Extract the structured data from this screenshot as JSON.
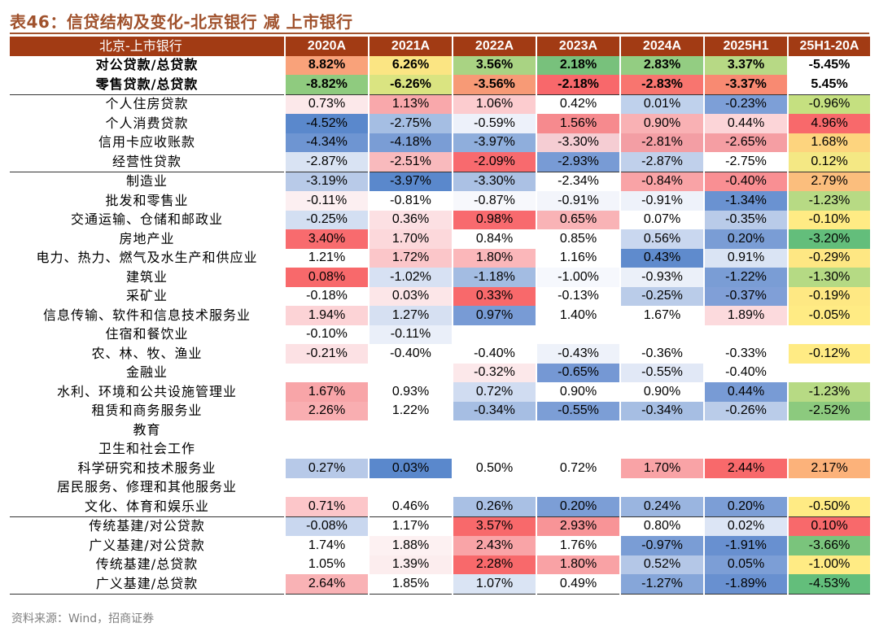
{
  "title": "表46：信贷结构及变化-北京银行 减 上市银行",
  "source": "资料来源：Wind，招商证券",
  "header": [
    "北京-上市银行",
    "2020A",
    "2021A",
    "2022A",
    "2023A",
    "2024A",
    "2025H1",
    "25H1-20A"
  ],
  "rows": [
    {
      "label": "对公贷款/总贷款",
      "bold": true,
      "values": [
        "8.82%",
        "6.26%",
        "3.56%",
        "2.18%",
        "2.83%",
        "3.37%",
        "-5.45%"
      ],
      "colors": [
        "#F9A27A",
        "#FBE583",
        "#A9D383",
        "#78C17C",
        "#93CD82",
        "#B7D985",
        "#FFFFFF"
      ]
    },
    {
      "label": "零售贷款/总贷款",
      "bold": true,
      "values": [
        "-8.82%",
        "-6.26%",
        "-3.56%",
        "-2.18%",
        "-2.83%",
        "-3.37%",
        "5.45%"
      ],
      "colors": [
        "#8FCB7F",
        "#DAE481",
        "#F79A76",
        "#F8686B",
        "#F8756F",
        "#F88A72",
        "#FFFFFF"
      ]
    },
    {
      "label": "个人住房贷款",
      "values": [
        "0.73%",
        "1.13%",
        "1.06%",
        "0.42%",
        "0.01%",
        "-0.23%",
        "-0.96%"
      ],
      "colors": [
        "#FCE8EA",
        "#F9A8AB",
        "#FCCCCF",
        "#FFFFFF",
        "#BFD1EC",
        "#7D9FD7",
        "#C5E080"
      ],
      "sep": true
    },
    {
      "label": "个人消费贷款",
      "values": [
        "-4.52%",
        "-2.75%",
        "-0.59%",
        "1.56%",
        "0.90%",
        "0.44%",
        "4.96%"
      ],
      "colors": [
        "#5A88CC",
        "#A5BEE3",
        "#EDF1FA",
        "#F68A8E",
        "#F9B1B4",
        "#FCD5D8",
        "#F8696B"
      ]
    },
    {
      "label": "信用卡应收账款",
      "values": [
        "-4.34%",
        "-4.18%",
        "-3.97%",
        "-3.30%",
        "-2.81%",
        "-2.65%",
        "1.68%"
      ],
      "colors": [
        "#6E95D2",
        "#7A9DD5",
        "#8FAEDC",
        "#F5CDD3",
        "#F39EA4",
        "#F59EA3",
        "#FDD47E"
      ]
    },
    {
      "label": "经营性贷款",
      "values": [
        "-2.87%",
        "-2.51%",
        "-2.09%",
        "-2.93%",
        "-2.87%",
        "-2.75%",
        "0.12%"
      ],
      "colors": [
        "#D9E3F3",
        "#F9BABD",
        "#F86A6E",
        "#789BD5",
        "#C0D0EB",
        "#FFFFFF",
        "#F4E884"
      ]
    },
    {
      "label": "制造业",
      "values": [
        "-3.19%",
        "-3.97%",
        "-3.30%",
        "-2.34%",
        "-0.84%",
        "-0.40%",
        "2.79%"
      ],
      "colors": [
        "#B8CAE8",
        "#5A88CC",
        "#ABC1E4",
        "#FFFFFF",
        "#F9A3A6",
        "#F98F93",
        "#FBBE7D"
      ],
      "sep": true
    },
    {
      "label": "批发和零售业",
      "values": [
        "-0.11%",
        "-0.81%",
        "-0.87%",
        "-0.91%",
        "-0.91%",
        "-1.34%",
        "-1.23%"
      ],
      "colors": [
        "#FCEFF1",
        "#FFFFFF",
        "#F7F8FC",
        "#F3F5FB",
        "#EEF2FA",
        "#6A92D1",
        "#B7DA84"
      ]
    },
    {
      "label": "交通运输、仓储和邮政业",
      "values": [
        "-0.25%",
        "0.36%",
        "0.98%",
        "0.65%",
        "0.07%",
        "-0.35%",
        "-0.10%"
      ],
      "colors": [
        "#D3DFF2",
        "#FCE0E3",
        "#F86A6E",
        "#F9B3B6",
        "#FFFFFF",
        "#B9CBE9",
        "#FFEB84"
      ]
    },
    {
      "label": "房地产业",
      "values": [
        "3.40%",
        "1.70%",
        "0.84%",
        "0.85%",
        "0.56%",
        "0.20%",
        "-3.20%"
      ],
      "colors": [
        "#F86B6E",
        "#FCD8DB",
        "#FFFFFF",
        "#FFFFFF",
        "#C9D7EF",
        "#7A9DD5",
        "#63BE7B"
      ]
    },
    {
      "label": "电力、热力、燃气及水生产和供应业",
      "values": [
        "1.21%",
        "1.72%",
        "1.80%",
        "1.16%",
        "0.43%",
        "0.91%",
        "-0.29%"
      ],
      "colors": [
        "#FFFFFF",
        "#FBC6C9",
        "#FBB7BA",
        "#FFFFFF",
        "#5F8BCD",
        "#DAE4F4",
        "#FEE783"
      ]
    },
    {
      "label": "建筑业",
      "values": [
        "0.08%",
        "-1.02%",
        "-1.18%",
        "-1.00%",
        "-0.93%",
        "-1.22%",
        "-1.30%"
      ],
      "colors": [
        "#F8696B",
        "#D7E1F3",
        "#A3BCE2",
        "#F6F8FD",
        "#EBF0F9",
        "#7A9DD5",
        "#B5DA84"
      ]
    },
    {
      "label": "采矿业",
      "values": [
        "-0.18%",
        "0.03%",
        "0.33%",
        "-0.13%",
        "-0.25%",
        "-0.37%",
        "-0.19%"
      ],
      "colors": [
        "#FFFFFF",
        "#FCE6E8",
        "#F8696B",
        "#FFFFFF",
        "#BACCE9",
        "#809FD7",
        "#FEE883"
      ]
    },
    {
      "label": "信息传输、软件和信息技术服务业",
      "values": [
        "1.94%",
        "1.27%",
        "0.97%",
        "1.40%",
        "1.67%",
        "1.89%",
        "-0.05%"
      ],
      "colors": [
        "#FCD3D6",
        "#D6E0F2",
        "#789BD5",
        "#FFFFFF",
        "#FFFFFF",
        "#FCDADD",
        "#FFEB84"
      ]
    },
    {
      "label": "住宿和餐饮业",
      "values": [
        "-0.10%",
        "-0.11%",
        "",
        "",
        "",
        "",
        ""
      ],
      "colors": [
        "#FFFFFF",
        "#EAEFF9",
        "#FFFFFF",
        "#FFFFFF",
        "#FFFFFF",
        "#FFFFFF",
        "#FFFFFF"
      ]
    },
    {
      "label": "农、林、牧、渔业",
      "values": [
        "-0.21%",
        "-0.40%",
        "-0.40%",
        "-0.43%",
        "-0.36%",
        "-0.33%",
        "-0.12%"
      ],
      "colors": [
        "#FCE1E4",
        "#FFFFFF",
        "#FFFFFF",
        "#EEF2FA",
        "#FFFFFF",
        "#FFFFFF",
        "#FFEB84"
      ]
    },
    {
      "label": "金融业",
      "values": [
        "",
        "",
        "-0.32%",
        "-0.65%",
        "-0.55%",
        "-0.40%",
        ""
      ],
      "colors": [
        "#FFFFFF",
        "#FFFFFF",
        "#FCE8EA",
        "#7598D4",
        "#E1E8F6",
        "#FFFFFF",
        "#FFFFFF"
      ]
    },
    {
      "label": "水利、环境和公共设施管理业",
      "values": [
        "1.67%",
        "0.93%",
        "0.72%",
        "0.90%",
        "0.90%",
        "0.44%",
        "-1.23%"
      ],
      "colors": [
        "#F8A5A8",
        "#FFFFFF",
        "#D0DCF1",
        "#FFFFFF",
        "#FFFFFF",
        "#789BD5",
        "#B7DA84"
      ]
    },
    {
      "label": "租赁和商务服务业",
      "values": [
        "2.26%",
        "1.22%",
        "-0.34%",
        "-0.55%",
        "-0.34%",
        "-0.26%",
        "-2.52%"
      ],
      "colors": [
        "#F9AEB1",
        "#FFFFFF",
        "#A6BEE3",
        "#7C9ED6",
        "#A6BEE3",
        "#BACCE9",
        "#8CCA7E"
      ]
    },
    {
      "label": "教育",
      "values": [
        "",
        "",
        "",
        "",
        "",
        "",
        ""
      ],
      "colors": [
        "#FFFFFF",
        "#FFFFFF",
        "#FFFFFF",
        "#FFFFFF",
        "#FFFFFF",
        "#FFFFFF",
        "#FFFFFF"
      ]
    },
    {
      "label": "卫生和社会工作",
      "values": [
        "",
        "",
        "",
        "",
        "",
        "",
        ""
      ],
      "colors": [
        "#FFFFFF",
        "#FFFFFF",
        "#FFFFFF",
        "#FFFFFF",
        "#FFFFFF",
        "#FFFFFF",
        "#FFFFFF"
      ]
    },
    {
      "label": "科学研究和技术服务业",
      "values": [
        "0.27%",
        "0.03%",
        "0.50%",
        "0.72%",
        "1.70%",
        "2.44%",
        "2.17%"
      ],
      "colors": [
        "#B7C9E8",
        "#5A88CC",
        "#FFFFFF",
        "#FFFFFF",
        "#F9A3A6",
        "#F8696B",
        "#FCB27A"
      ]
    },
    {
      "label": "居民服务、修理和其他服务业",
      "values": [
        "",
        "",
        "",
        "",
        "",
        "",
        ""
      ],
      "colors": [
        "#FFFFFF",
        "#FFFFFF",
        "#FFFFFF",
        "#FFFFFF",
        "#FFFFFF",
        "#FFFFFF",
        "#FFFFFF"
      ]
    },
    {
      "label": "文化、体育和娱乐业",
      "values": [
        "0.71%",
        "0.46%",
        "0.26%",
        "0.20%",
        "0.24%",
        "0.20%",
        "-0.50%"
      ],
      "colors": [
        "#FCC6C9",
        "#FFFFFF",
        "#A9C0E4",
        "#7C9ED6",
        "#9AB5E0",
        "#7C9ED6",
        "#FFEB84"
      ]
    },
    {
      "label": "传统基建/对公贷款",
      "values": [
        "-0.08%",
        "1.17%",
        "3.57%",
        "2.93%",
        "0.80%",
        "0.02%",
        "0.10%"
      ],
      "colors": [
        "#C9D7EF",
        "#FFFFFF",
        "#F8696B",
        "#F89497",
        "#FFFFFF",
        "#DCE5F5",
        "#F8696B"
      ],
      "sep": true
    },
    {
      "label": "广义基建/对公贷款",
      "values": [
        "1.74%",
        "1.88%",
        "2.43%",
        "1.76%",
        "-0.97%",
        "-1.91%",
        "-3.66%"
      ],
      "colors": [
        "#FFFFFF",
        "#FDF1F2",
        "#F9A4A7",
        "#FFFFFF",
        "#7A9DD5",
        "#6890D0",
        "#7AC47C"
      ]
    },
    {
      "label": "传统基建/总贷款",
      "values": [
        "1.05%",
        "1.39%",
        "2.28%",
        "1.80%",
        "0.52%",
        "0.05%",
        "-1.00%"
      ],
      "colors": [
        "#FFFFFF",
        "#FCEDEE",
        "#F8696B",
        "#F9A2A5",
        "#B4C7E7",
        "#7C9ED6",
        "#FFEB84"
      ]
    },
    {
      "label": "广义基建/总贷款",
      "values": [
        "2.64%",
        "1.85%",
        "1.07%",
        "0.49%",
        "-1.27%",
        "-1.89%",
        "-4.53%"
      ],
      "colors": [
        "#F9B2B5",
        "#FFFFFF",
        "#DAE4F4",
        "#FFFFFF",
        "#86A6D9",
        "#6890D0",
        "#63BE7B"
      ],
      "last": true
    }
  ]
}
